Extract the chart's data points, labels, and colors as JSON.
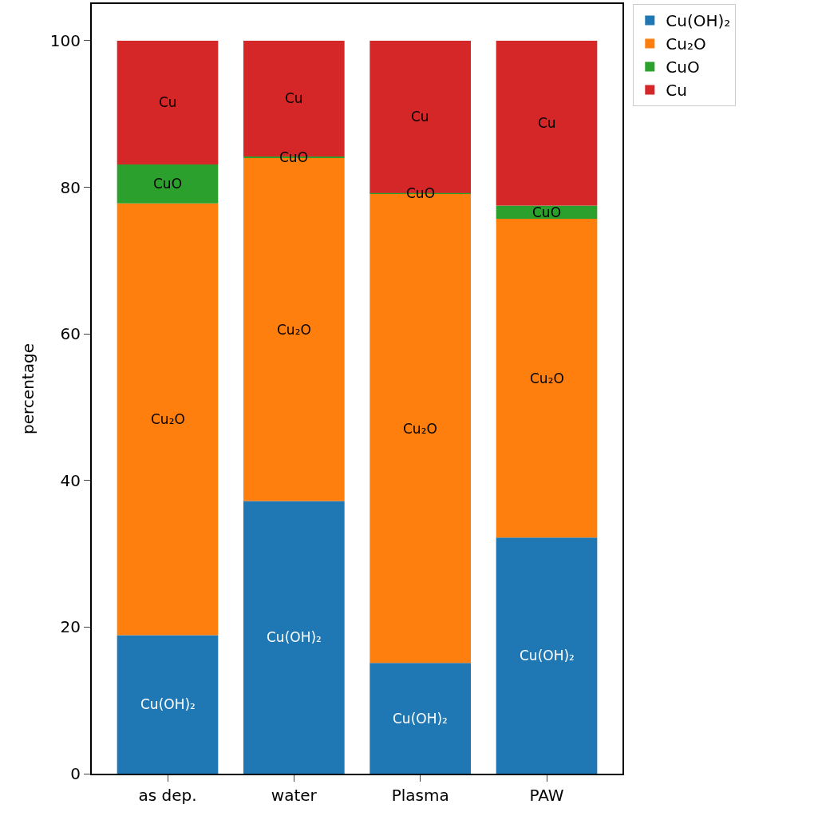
{
  "chart_data": {
    "type": "bar",
    "stacked": true,
    "ylabel": "percentage",
    "categories": [
      "as dep.",
      "water",
      "Plasma",
      "PAW"
    ],
    "series": [
      {
        "name": "Cu(OH)₂",
        "color": "#1f77b4",
        "values": [
          18.9,
          37.2,
          15.1,
          32.2
        ],
        "value_labels": [
          "Cu(OH)₂",
          "Cu(OH)₂",
          "Cu(OH)₂",
          "Cu(OH)₂"
        ]
      },
      {
        "name": "Cu₂O",
        "color": "#ff7f0e",
        "values": [
          58.9,
          46.8,
          64.0,
          43.5
        ],
        "value_labels": [
          "Cu₂O",
          "Cu₂O",
          "Cu₂O",
          "Cu₂O"
        ]
      },
      {
        "name": "CuO",
        "color": "#2ca02c",
        "values": [
          5.3,
          0.2,
          0.1,
          1.8
        ],
        "value_labels": [
          "CuO",
          "CuO",
          "CuO",
          "CuO"
        ]
      },
      {
        "name": "Cu",
        "color": "#d62728",
        "values": [
          16.9,
          15.8,
          20.8,
          22.5
        ],
        "value_labels": [
          "Cu",
          "Cu",
          "Cu",
          "Cu"
        ]
      }
    ],
    "ylim": [
      0,
      105
    ],
    "yticks": [
      0,
      20,
      40,
      60,
      80,
      100
    ],
    "grid": false,
    "legend": "top right"
  }
}
